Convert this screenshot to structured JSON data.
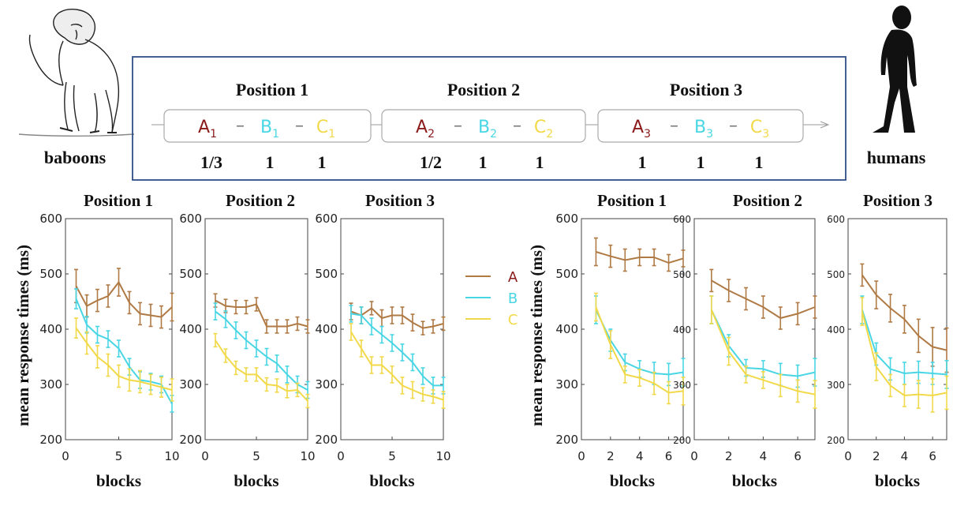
{
  "colors": {
    "A": "#b07a45",
    "B": "#49d6e4",
    "C": "#f2d94a",
    "A_text": "#8b1a1a",
    "frame": "#2f4f86",
    "axis": "#444444"
  },
  "icons": {
    "left": "baboon-icon",
    "right": "human-silhouette-icon"
  },
  "labels": {
    "left_group": "baboons",
    "right_group": "humans"
  },
  "sequence": {
    "positions": [
      {
        "title": "Position 1",
        "items": [
          "A",
          "B",
          "C"
        ],
        "subscript": "1",
        "probs": [
          "1/3",
          "1",
          "1"
        ]
      },
      {
        "title": "Position 2",
        "items": [
          "A",
          "B",
          "C"
        ],
        "subscript": "2",
        "probs": [
          "1/2",
          "1",
          "1"
        ]
      },
      {
        "title": "Position 3",
        "items": [
          "A",
          "B",
          "C"
        ],
        "subscript": "3",
        "probs": [
          "1",
          "1",
          "1"
        ]
      }
    ],
    "dash": "–"
  },
  "legend": [
    "A",
    "B",
    "C"
  ],
  "chart_data": [
    {
      "group": "baboons",
      "type": "line",
      "title": "Position 1",
      "xlabel": "blocks",
      "ylabel": "mean response times (ms)",
      "xlim": [
        0,
        10
      ],
      "ylim": [
        200,
        600
      ],
      "xticks": [
        0,
        5,
        10
      ],
      "yticks": [
        200,
        300,
        400,
        500,
        600
      ],
      "series": [
        {
          "name": "A",
          "x": [
            1,
            2,
            3,
            4,
            5,
            6,
            7,
            8,
            9,
            10
          ],
          "values": [
            478,
            442,
            452,
            460,
            485,
            448,
            428,
            425,
            422,
            440
          ],
          "err": [
            30,
            20,
            20,
            20,
            25,
            20,
            20,
            20,
            20,
            25
          ]
        },
        {
          "name": "B",
          "x": [
            1,
            2,
            3,
            4,
            5,
            6,
            7,
            8,
            9,
            10
          ],
          "values": [
            455,
            408,
            390,
            382,
            365,
            332,
            308,
            305,
            300,
            265
          ],
          "err": [
            18,
            15,
            15,
            15,
            15,
            15,
            15,
            15,
            15,
            15
          ]
        },
        {
          "name": "C",
          "x": [
            1,
            2,
            3,
            4,
            5,
            6,
            7,
            8,
            9,
            10
          ],
          "values": [
            402,
            375,
            350,
            335,
            315,
            308,
            305,
            300,
            295,
            290
          ],
          "err": [
            18,
            20,
            20,
            20,
            20,
            20,
            20,
            18,
            18,
            20
          ]
        }
      ]
    },
    {
      "group": "baboons",
      "type": "line",
      "title": "Position 2",
      "xlabel": "blocks",
      "ylabel": "",
      "xlim": [
        0,
        10
      ],
      "ylim": [
        200,
        600
      ],
      "xticks": [
        0,
        5,
        10
      ],
      "yticks": [
        200,
        300,
        400,
        500,
        600
      ],
      "series": [
        {
          "name": "A",
          "x": [
            1,
            2,
            3,
            4,
            5,
            6,
            7,
            8,
            9,
            10
          ],
          "values": [
            452,
            442,
            440,
            440,
            445,
            405,
            405,
            405,
            410,
            405
          ],
          "err": [
            12,
            12,
            12,
            12,
            12,
            12,
            12,
            12,
            12,
            12
          ]
        },
        {
          "name": "B",
          "x": [
            1,
            2,
            3,
            4,
            5,
            6,
            7,
            8,
            9,
            10
          ],
          "values": [
            432,
            418,
            398,
            380,
            365,
            350,
            338,
            318,
            300,
            290
          ],
          "err": [
            15,
            15,
            15,
            15,
            15,
            15,
            15,
            15,
            15,
            15
          ]
        },
        {
          "name": "C",
          "x": [
            1,
            2,
            3,
            4,
            5,
            6,
            7,
            8,
            9,
            10
          ],
          "values": [
            380,
            352,
            330,
            318,
            318,
            300,
            298,
            288,
            290,
            270
          ],
          "err": [
            12,
            12,
            12,
            12,
            12,
            12,
            12,
            12,
            12,
            12
          ]
        }
      ]
    },
    {
      "group": "baboons",
      "type": "line",
      "title": "Position 3",
      "xlabel": "blocks",
      "ylabel": "",
      "xlim": [
        0,
        10
      ],
      "ylim": [
        200,
        600
      ],
      "xticks": [
        0,
        5,
        10
      ],
      "yticks": [
        200,
        300,
        400,
        500,
        600
      ],
      "series": [
        {
          "name": "A",
          "x": [
            1,
            2,
            3,
            4,
            5,
            6,
            7,
            8,
            9,
            10
          ],
          "values": [
            432,
            425,
            438,
            420,
            425,
            425,
            412,
            402,
            405,
            410
          ],
          "err": [
            15,
            15,
            12,
            15,
            15,
            15,
            15,
            12,
            12,
            12
          ]
        },
        {
          "name": "B",
          "x": [
            1,
            2,
            3,
            4,
            5,
            6,
            7,
            8,
            9,
            10
          ],
          "values": [
            428,
            425,
            405,
            390,
            375,
            358,
            340,
            315,
            298,
            298
          ],
          "err": [
            15,
            15,
            15,
            15,
            15,
            15,
            15,
            15,
            15,
            15
          ]
        },
        {
          "name": "C",
          "x": [
            1,
            2,
            3,
            4,
            5,
            6,
            7,
            8,
            9,
            10
          ],
          "values": [
            395,
            365,
            335,
            335,
            318,
            298,
            290,
            282,
            278,
            272
          ],
          "err": [
            15,
            15,
            15,
            15,
            15,
            15,
            15,
            12,
            12,
            15
          ]
        }
      ]
    },
    {
      "group": "humans",
      "type": "line",
      "title": "Position 1",
      "xlabel": "blocks",
      "ylabel": "mean response times (ms)",
      "xlim": [
        0,
        7
      ],
      "ylim": [
        200,
        600
      ],
      "xticks": [
        0,
        2,
        4,
        6
      ],
      "yticks": [
        200,
        300,
        400,
        500,
        600
      ],
      "series": [
        {
          "name": "A",
          "x": [
            1,
            2,
            3,
            4,
            5,
            6,
            7
          ],
          "values": [
            540,
            532,
            525,
            530,
            530,
            520,
            528
          ],
          "err": [
            25,
            20,
            20,
            15,
            15,
            15,
            15
          ]
        },
        {
          "name": "B",
          "x": [
            1,
            2,
            3,
            4,
            5,
            6,
            7
          ],
          "values": [
            435,
            380,
            340,
            328,
            320,
            318,
            322
          ],
          "err": [
            25,
            20,
            15,
            15,
            20,
            20,
            25
          ]
        },
        {
          "name": "C",
          "x": [
            1,
            2,
            3,
            4,
            5,
            6,
            7
          ],
          "values": [
            440,
            372,
            318,
            312,
            302,
            285,
            288
          ],
          "err": [
            25,
            25,
            15,
            15,
            20,
            20,
            25
          ]
        }
      ]
    },
    {
      "group": "humans",
      "type": "line",
      "title": "Position 2",
      "xlabel": "blocks",
      "ylabel": "",
      "xlim": [
        0,
        7
      ],
      "ylim": [
        200,
        600
      ],
      "xticks": [
        0,
        2,
        4,
        6
      ],
      "yticks": [
        200,
        300,
        400,
        500,
        600
      ],
      "series": [
        {
          "name": "A",
          "x": [
            1,
            2,
            3,
            4,
            5,
            6,
            7
          ],
          "values": [
            488,
            470,
            455,
            440,
            420,
            428,
            440
          ],
          "err": [
            20,
            20,
            20,
            20,
            20,
            20,
            20
          ]
        },
        {
          "name": "B",
          "x": [
            1,
            2,
            3,
            4,
            5,
            6,
            7
          ],
          "values": [
            435,
            370,
            330,
            328,
            318,
            315,
            322
          ],
          "err": [
            25,
            20,
            15,
            15,
            20,
            20,
            25
          ]
        },
        {
          "name": "C",
          "x": [
            1,
            2,
            3,
            4,
            5,
            6,
            7
          ],
          "values": [
            435,
            360,
            318,
            308,
            298,
            288,
            282
          ],
          "err": [
            25,
            25,
            15,
            15,
            20,
            20,
            25
          ]
        }
      ]
    },
    {
      "group": "humans",
      "type": "line",
      "title": "Position 3",
      "xlabel": "blocks",
      "ylabel": "",
      "xlim": [
        0,
        7
      ],
      "ylim": [
        200,
        600
      ],
      "xticks": [
        0,
        2,
        4,
        6
      ],
      "yticks": [
        200,
        300,
        400,
        500,
        600
      ],
      "series": [
        {
          "name": "A",
          "x": [
            1,
            2,
            3,
            4,
            5,
            6,
            7
          ],
          "values": [
            498,
            462,
            438,
            418,
            388,
            368,
            362
          ],
          "err": [
            20,
            25,
            25,
            25,
            30,
            35,
            40
          ]
        },
        {
          "name": "B",
          "x": [
            1,
            2,
            3,
            4,
            5,
            6,
            7
          ],
          "values": [
            435,
            355,
            328,
            320,
            322,
            320,
            318
          ],
          "err": [
            25,
            20,
            20,
            20,
            20,
            20,
            25
          ]
        },
        {
          "name": "C",
          "x": [
            1,
            2,
            3,
            4,
            5,
            6,
            7
          ],
          "values": [
            432,
            332,
            298,
            280,
            282,
            280,
            285
          ],
          "err": [
            25,
            25,
            20,
            20,
            25,
            30,
            30
          ]
        }
      ]
    }
  ]
}
